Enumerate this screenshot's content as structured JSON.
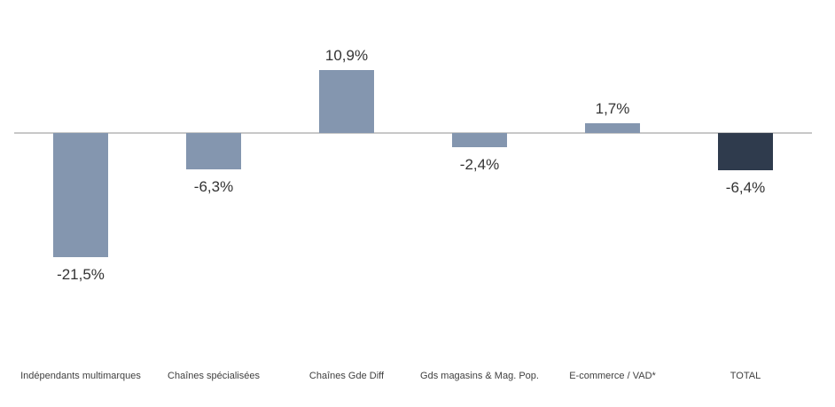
{
  "chart_data": {
    "type": "bar",
    "title": "",
    "xlabel": "",
    "ylabel": "",
    "categories": [
      "Indépendants multimarques",
      "Chaînes spécialisées",
      "Chaînes Gde Diff",
      "Gds magasins & Mag. Pop.",
      "E-commerce / VAD*",
      "TOTAL"
    ],
    "values": [
      -21.5,
      -6.3,
      10.9,
      -2.4,
      1.7,
      -6.4
    ],
    "labels": [
      "-21,5%",
      "-6,3%",
      "10,9%",
      "-2,4%",
      "1,7%",
      "-6,4%"
    ],
    "unit": "%",
    "ylim": [
      -25,
      15
    ],
    "grid": false,
    "legend_position": "none",
    "baseline": 0,
    "colors": {
      "bar": "#8496AF",
      "total_bar": "#2F3B4D",
      "axis_line": "#C8C8C8",
      "value_text": "#333333",
      "category_text": "#404040"
    }
  }
}
